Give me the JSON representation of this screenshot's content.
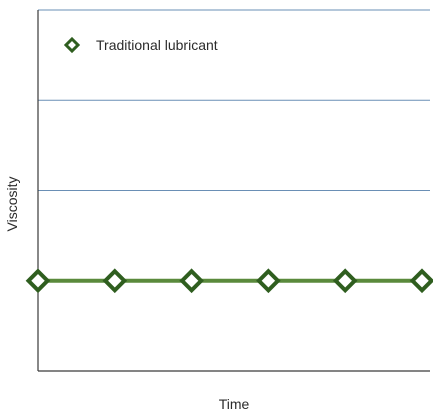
{
  "chart_data": {
    "type": "line",
    "title": "",
    "xlabel": "Time",
    "ylabel": "Viscosity",
    "x": [
      1,
      2,
      3,
      4,
      5,
      6
    ],
    "series": [
      {
        "name": "Traditional lubricant",
        "values": [
          1,
          1,
          1,
          1,
          1,
          1
        ],
        "line_color": "#5a8a3c",
        "marker": "diamond",
        "marker_edge_color": "#2f5e1f",
        "marker_face_color": "#ffffff"
      }
    ],
    "ylim": [
      0,
      4
    ],
    "grid": "horizontal",
    "legend_position": "top-left",
    "gridline_color": "#6a8fb5",
    "axis_color": "#3a3a3a"
  }
}
